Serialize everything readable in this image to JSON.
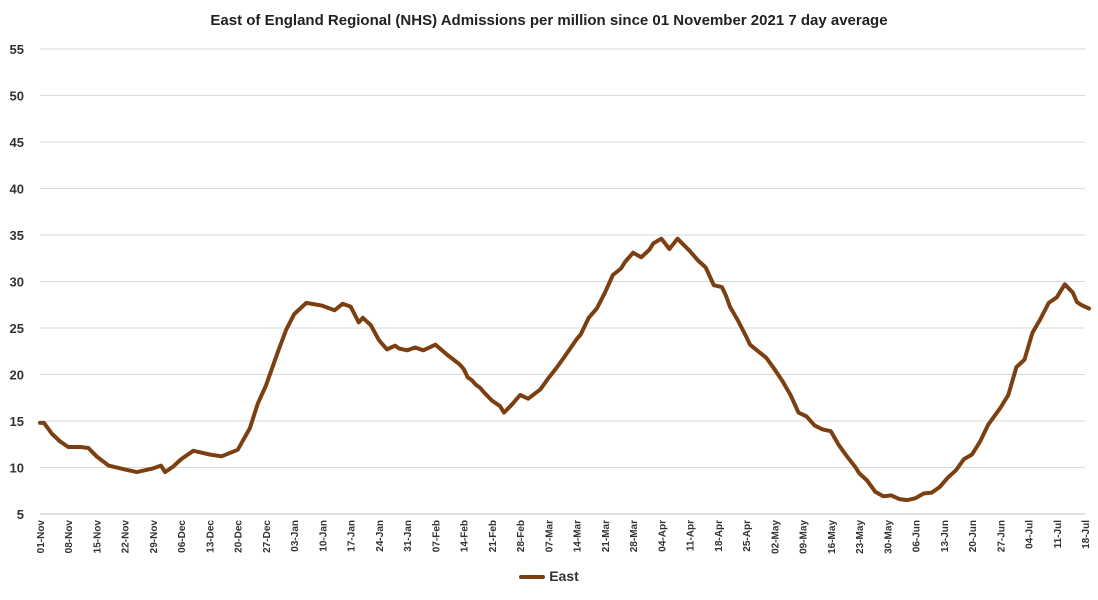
{
  "chart_data": {
    "type": "line",
    "title": "East of England Regional (NHS) Admissions per million since 01 November 2021 7 day average",
    "xlabel": "",
    "ylabel": "",
    "ylim": [
      5,
      55
    ],
    "yticks": [
      5,
      10,
      15,
      20,
      25,
      30,
      35,
      40,
      45,
      50,
      55
    ],
    "grid": true,
    "legend_position": "bottom-center",
    "x_tick_labels": [
      "01-Nov",
      "08-Nov",
      "15-Nov",
      "22-Nov",
      "29-Nov",
      "06-Dec",
      "13-Dec",
      "20-Dec",
      "27-Dec",
      "03-Jan",
      "10-Jan",
      "17-Jan",
      "24-Jan",
      "31-Jan",
      "07-Feb",
      "14-Feb",
      "21-Feb",
      "28-Feb",
      "07-Mar",
      "14-Mar",
      "21-Mar",
      "28-Mar",
      "04-Apr",
      "11-Apr",
      "18-Apr",
      "25-Apr",
      "02-May",
      "09-May",
      "16-May",
      "23-May",
      "30-May",
      "06-Jun",
      "13-Jun",
      "20-Jun",
      "27-Jun",
      "04-Jul",
      "11-Jul",
      "18-Jul"
    ],
    "series": [
      {
        "name": "East",
        "color": "#7b3f11",
        "x_day_offset": [
          0,
          1,
          3,
          5,
          7,
          10,
          12,
          14,
          17,
          21,
          24,
          28,
          30,
          31,
          33,
          35,
          38,
          40,
          42,
          45,
          49,
          52,
          54,
          56,
          59,
          61,
          63,
          66,
          70,
          73,
          75,
          77,
          79,
          80,
          82,
          84,
          86,
          87,
          88,
          89,
          90,
          91,
          93,
          95,
          98,
          101,
          104,
          105,
          106,
          107,
          108,
          109,
          110,
          112,
          114,
          115,
          117,
          119,
          121,
          124,
          126,
          128,
          130,
          133,
          134,
          136,
          138,
          140,
          142,
          144,
          145,
          147,
          149,
          151,
          152,
          154,
          156,
          158,
          161,
          163,
          165,
          167,
          169,
          170,
          171,
          173,
          175,
          176,
          178,
          180,
          182,
          184,
          186,
          188,
          190,
          192,
          194,
          196,
          198,
          200,
          202,
          203,
          205,
          207,
          209,
          211,
          213,
          215,
          217,
          219,
          221,
          223,
          225,
          227,
          229,
          231,
          233,
          235,
          238,
          240,
          242,
          244,
          246,
          248,
          250,
          252,
          254,
          256,
          257,
          258,
          260
        ],
        "values": [
          14.8,
          14.8,
          13.6,
          12.8,
          12.2,
          12.2,
          12.1,
          11.2,
          10.2,
          9.8,
          9.5,
          9.9,
          10.2,
          9.5,
          10.1,
          10.9,
          11.8,
          11.6,
          11.4,
          11.2,
          11.9,
          14.2,
          16.9,
          18.8,
          22.5,
          24.8,
          26.5,
          27.7,
          27.4,
          26.9,
          27.6,
          27.3,
          25.6,
          26.1,
          25.3,
          23.7,
          22.7,
          22.9,
          23.1,
          22.8,
          22.7,
          22.6,
          22.9,
          22.6,
          23.2,
          22.1,
          21.1,
          20.6,
          19.7,
          19.4,
          18.9,
          18.6,
          18.1,
          17.2,
          16.6,
          15.9,
          16.8,
          17.8,
          17.4,
          18.4,
          19.6,
          20.7,
          21.9,
          23.8,
          24.3,
          26.1,
          27.1,
          28.8,
          30.7,
          31.4,
          32.1,
          33.1,
          32.6,
          33.4,
          34.1,
          34.6,
          33.5,
          34.6,
          33.3,
          32.3,
          31.5,
          29.6,
          29.4,
          28.5,
          27.3,
          25.8,
          24.1,
          23.2,
          22.5,
          21.8,
          20.6,
          19.3,
          17.8,
          15.9,
          15.5,
          14.5,
          14.1,
          13.9,
          12.4,
          11.2,
          10.1,
          9.4,
          8.6,
          7.4,
          6.9,
          7.0,
          6.6,
          6.5,
          6.7,
          7.2,
          7.3,
          7.9,
          8.9,
          9.7,
          10.9,
          11.4,
          12.8,
          14.6,
          16.4,
          17.8,
          20.8,
          21.6,
          24.5,
          26.0,
          27.7,
          28.3,
          29.7,
          28.8,
          27.8,
          27.5,
          27.1
        ]
      }
    ]
  }
}
